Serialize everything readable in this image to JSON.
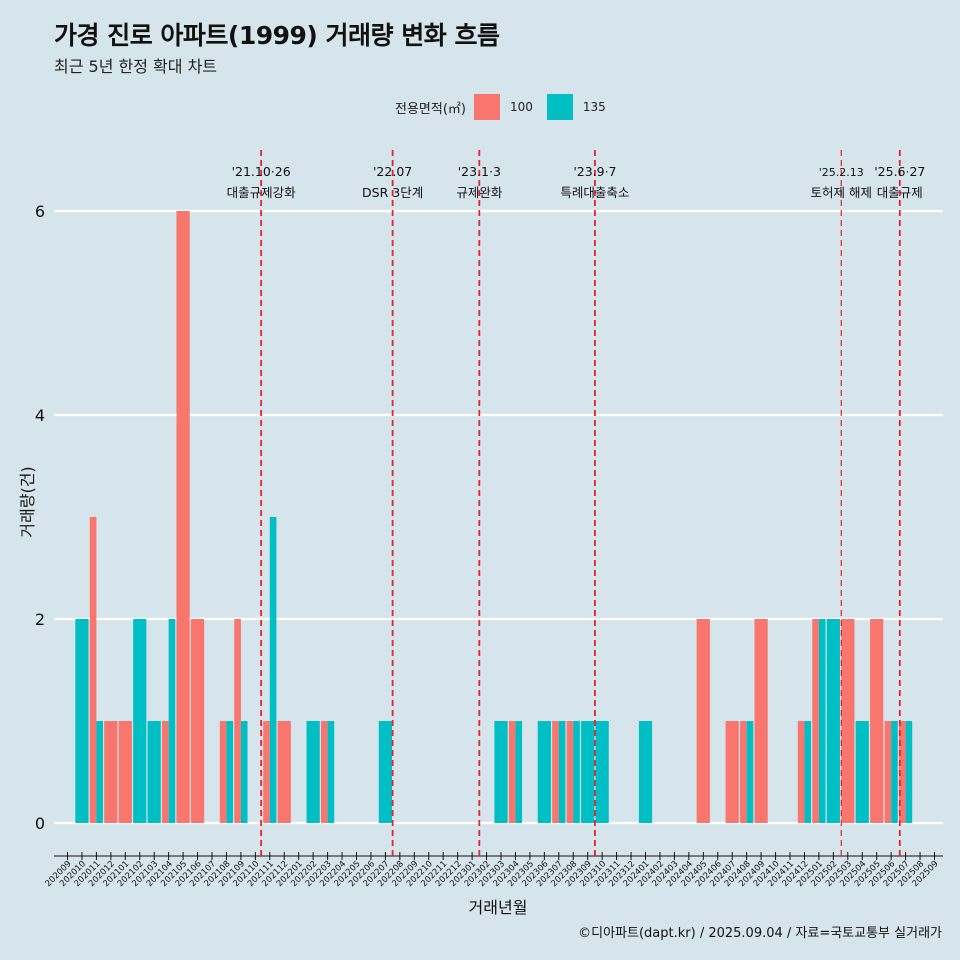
{
  "header": {
    "title": "가경 진로 아파트(1999) 거래량 변화 흐름",
    "subtitle": "최근 5년 한정 확대 차트"
  },
  "legend": {
    "title": "전용면적(㎡)",
    "items": [
      {
        "label": "100",
        "color": "#F8766D"
      },
      {
        "label": "135",
        "color": "#00BFC4"
      }
    ]
  },
  "caption": "©디아파트(dapt.kr) / 2025.09.04 / 자료=국토교통부 실거래가",
  "chart_data": {
    "type": "bar",
    "xlabel": "거래년월",
    "ylabel": "거래량(건)",
    "ylim": [
      0,
      6.3
    ],
    "yticks": [
      0,
      2,
      4,
      6
    ],
    "categories": [
      "202009",
      "202010",
      "202011",
      "202012",
      "202101",
      "202102",
      "202103",
      "202104",
      "202105",
      "202106",
      "202107",
      "202108",
      "202109",
      "202110",
      "202111",
      "202112",
      "202201",
      "202202",
      "202203",
      "202204",
      "202205",
      "202206",
      "202207",
      "202208",
      "202209",
      "202210",
      "202211",
      "202212",
      "202301",
      "202302",
      "202303",
      "202304",
      "202305",
      "202306",
      "202307",
      "202308",
      "202309",
      "202310",
      "202311",
      "202312",
      "202401",
      "202402",
      "202403",
      "202404",
      "202405",
      "202406",
      "202407",
      "202408",
      "202409",
      "202410",
      "202411",
      "202412",
      "202501",
      "202502",
      "202503",
      "202504",
      "202505",
      "202506",
      "202507",
      "202508",
      "202509"
    ],
    "series": [
      {
        "name": "100",
        "color": "#F8766D",
        "values": [
          0,
          0,
          3,
          1,
          1,
          0,
          0,
          1,
          6,
          2,
          0,
          1,
          2,
          0,
          1,
          1,
          0,
          0,
          1,
          0,
          0,
          0,
          0,
          0,
          0,
          0,
          0,
          0,
          0,
          0,
          0,
          1,
          0,
          0,
          1,
          1,
          0,
          0,
          0,
          0,
          0,
          0,
          0,
          0,
          2,
          0,
          1,
          1,
          2,
          0,
          0,
          1,
          2,
          0,
          2,
          0,
          2,
          1,
          1,
          0,
          0
        ]
      },
      {
        "name": "135",
        "color": "#00BFC4",
        "values": [
          0,
          2,
          1,
          0,
          0,
          2,
          1,
          2,
          0,
          0,
          0,
          1,
          1,
          0,
          3,
          0,
          0,
          1,
          1,
          0,
          0,
          0,
          1,
          0,
          0,
          0,
          0,
          0,
          0,
          0,
          1,
          1,
          0,
          1,
          1,
          1,
          1,
          1,
          0,
          0,
          1,
          0,
          0,
          0,
          0,
          0,
          0,
          1,
          0,
          0,
          0,
          1,
          2,
          2,
          0,
          1,
          0,
          1,
          1,
          0,
          0
        ]
      }
    ],
    "annotations": [
      {
        "date": "'21.10·26",
        "text": "대출규제강화",
        "x_position": 13.4
      },
      {
        "date": "'22.07",
        "text": "DSR 3단계",
        "x_position": 22.5
      },
      {
        "date": "'23.1·3",
        "text": "규제완화",
        "x_position": 28.5
      },
      {
        "date": "'23.9·7",
        "text": "특례대출축소",
        "x_position": 36.5
      },
      {
        "date": "'25.2.13",
        "text": "토허제 해제",
        "x_position": 53.55
      },
      {
        "date": "'25.6·27",
        "text": "대출규제",
        "x_position": 57.6
      }
    ]
  }
}
